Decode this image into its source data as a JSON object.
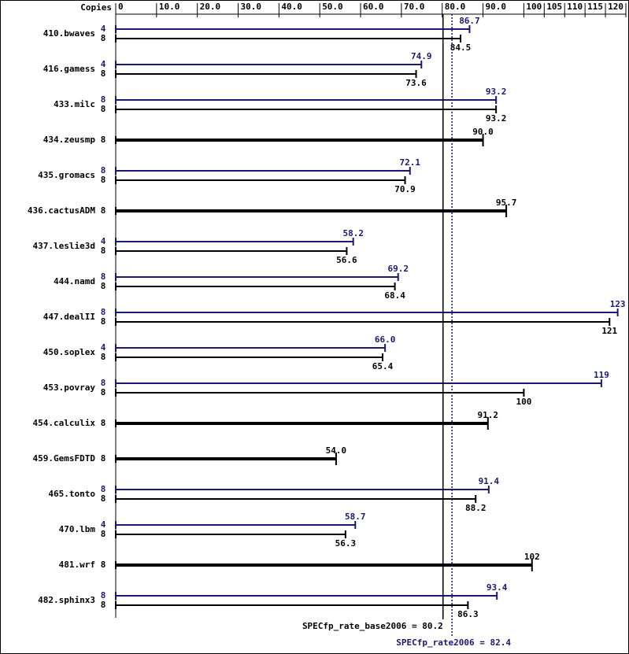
{
  "chart_data": {
    "type": "spec-bar",
    "axis_title": "Copies",
    "categories": [
      "410.bwaves",
      "416.gamess",
      "433.milc",
      "434.zeusmp",
      "435.gromacs",
      "436.cactusADM",
      "437.leslie3d",
      "444.namd",
      "447.dealII",
      "450.soplex",
      "453.povray",
      "454.calculix",
      "459.GemsFDTD",
      "465.tonto",
      "470.lbm",
      "481.wrf",
      "482.sphinx3"
    ],
    "series": [
      {
        "color": "#191970",
        "copies": [
          4,
          4,
          8,
          null,
          8,
          null,
          4,
          8,
          8,
          4,
          8,
          null,
          null,
          8,
          4,
          null,
          8
        ],
        "values": [
          86.7,
          74.9,
          93.2,
          null,
          72.1,
          null,
          58.2,
          69.2,
          123,
          66.0,
          119,
          null,
          null,
          91.4,
          58.7,
          null,
          93.4
        ],
        "value_labels": [
          "86.7",
          "74.9",
          "93.2",
          null,
          "72.1",
          null,
          "58.2",
          "69.2",
          "123",
          "66.0",
          "119",
          null,
          null,
          "91.4",
          "58.7",
          null,
          "93.4"
        ]
      },
      {
        "color": "#000000",
        "copies": [
          8,
          8,
          8,
          8,
          8,
          8,
          8,
          8,
          8,
          8,
          8,
          8,
          8,
          8,
          8,
          8,
          8
        ],
        "values": [
          84.5,
          73.6,
          93.2,
          90.0,
          70.9,
          95.7,
          56.6,
          68.4,
          121,
          65.4,
          100,
          91.2,
          54.0,
          88.2,
          56.3,
          102,
          86.3
        ],
        "value_labels": [
          "84.5",
          "73.6",
          "93.2",
          "90.0",
          "70.9",
          "95.7",
          "56.6",
          "68.4",
          "121",
          "65.4",
          "100",
          "91.2",
          "54.0",
          "88.2",
          "56.3",
          "102",
          "86.3"
        ]
      }
    ],
    "xlim": [
      0,
      125
    ],
    "xticks": [
      0,
      {
        "value": 10,
        "label": "10.0"
      },
      {
        "value": 20,
        "label": "20.0"
      },
      {
        "value": 30,
        "label": "30.0"
      },
      {
        "value": 40,
        "label": "40.0"
      },
      {
        "value": 50,
        "label": "50.0"
      },
      {
        "value": 60,
        "label": "60.0"
      },
      {
        "value": 70,
        "label": "70.0"
      },
      {
        "value": 80,
        "label": "80.0"
      },
      {
        "value": 90,
        "label": "90.0"
      },
      100,
      105,
      110,
      115,
      120,
      125
    ],
    "reference_lines": [
      {
        "text": "SPECfp_rate_base2006 = 80.2",
        "value": 80.2,
        "color": "#000000",
        "dashed": false
      },
      {
        "text": "SPECfp_rate2006 = 82.4",
        "value": 82.4,
        "color": "#191970",
        "dashed": true
      }
    ]
  }
}
